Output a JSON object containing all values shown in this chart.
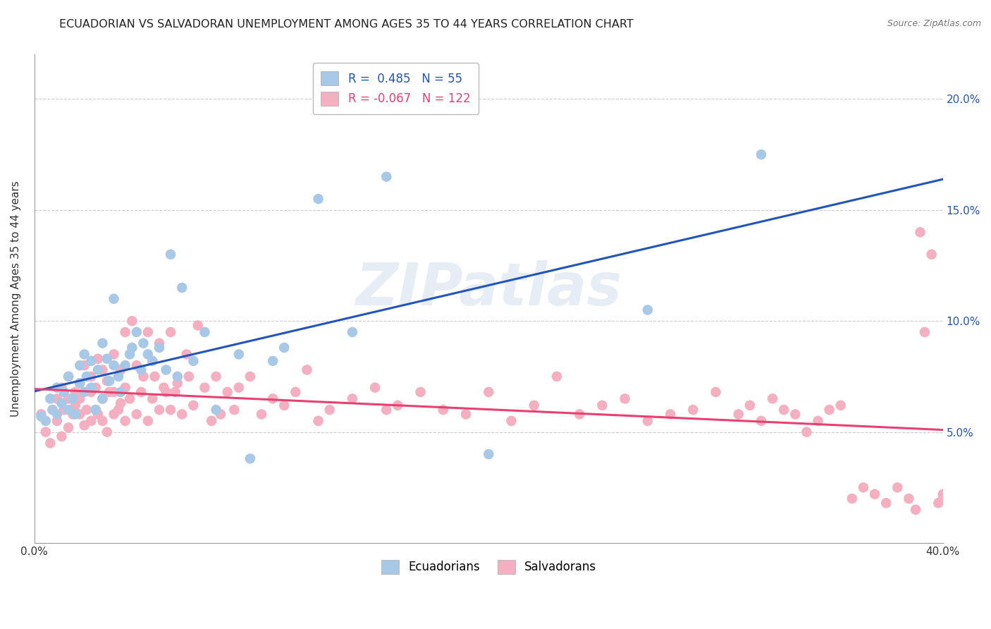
{
  "title": "ECUADORIAN VS SALVADORAN UNEMPLOYMENT AMONG AGES 35 TO 44 YEARS CORRELATION CHART",
  "source": "Source: ZipAtlas.com",
  "ylabel": "Unemployment Among Ages 35 to 44 years",
  "xlim": [
    0.0,
    0.4
  ],
  "ylim": [
    0.0,
    0.22
  ],
  "xticks": [
    0.0,
    0.1,
    0.2,
    0.3,
    0.4
  ],
  "xticklabels": [
    "0.0%",
    "",
    "",
    "",
    "40.0%"
  ],
  "yticks_right": [
    0.05,
    0.1,
    0.15,
    0.2
  ],
  "yticklabels_right": [
    "5.0%",
    "10.0%",
    "15.0%",
    "20.0%"
  ],
  "grid_color": "#cccccc",
  "background_color": "#ffffff",
  "ecuadorian_color": "#a8c8e8",
  "salvadoran_color": "#f4afc0",
  "ecuadorian_line_color": "#2255bb",
  "salvadoran_line_color": "#e84070",
  "R_ecu": 0.485,
  "N_ecu": 55,
  "R_sal": -0.067,
  "N_sal": 122,
  "watermark": "ZIPatlas",
  "legend_labels": [
    "Ecuadorians",
    "Salvadorans"
  ],
  "ecuadorian_points_x": [
    0.003,
    0.005,
    0.007,
    0.008,
    0.01,
    0.01,
    0.012,
    0.013,
    0.015,
    0.015,
    0.017,
    0.018,
    0.02,
    0.02,
    0.022,
    0.022,
    0.023,
    0.025,
    0.025,
    0.027,
    0.028,
    0.03,
    0.03,
    0.032,
    0.033,
    0.035,
    0.035,
    0.037,
    0.038,
    0.04,
    0.042,
    0.043,
    0.045,
    0.047,
    0.048,
    0.05,
    0.052,
    0.055,
    0.058,
    0.06,
    0.063,
    0.065,
    0.07,
    0.075,
    0.08,
    0.09,
    0.095,
    0.105,
    0.11,
    0.125,
    0.14,
    0.155,
    0.2,
    0.27,
    0.32
  ],
  "ecuadorian_points_y": [
    0.057,
    0.055,
    0.065,
    0.06,
    0.058,
    0.07,
    0.063,
    0.068,
    0.06,
    0.075,
    0.065,
    0.058,
    0.072,
    0.08,
    0.068,
    0.085,
    0.075,
    0.07,
    0.082,
    0.06,
    0.078,
    0.065,
    0.09,
    0.083,
    0.073,
    0.08,
    0.11,
    0.075,
    0.068,
    0.08,
    0.085,
    0.088,
    0.095,
    0.078,
    0.09,
    0.085,
    0.082,
    0.088,
    0.078,
    0.13,
    0.075,
    0.115,
    0.082,
    0.095,
    0.06,
    0.085,
    0.038,
    0.082,
    0.088,
    0.155,
    0.095,
    0.165,
    0.04,
    0.105,
    0.175
  ],
  "salvadoran_points_x": [
    0.003,
    0.005,
    0.007,
    0.008,
    0.01,
    0.01,
    0.012,
    0.012,
    0.013,
    0.015,
    0.015,
    0.015,
    0.017,
    0.018,
    0.018,
    0.02,
    0.02,
    0.02,
    0.022,
    0.022,
    0.023,
    0.025,
    0.025,
    0.025,
    0.027,
    0.027,
    0.028,
    0.028,
    0.03,
    0.03,
    0.03,
    0.032,
    0.032,
    0.033,
    0.035,
    0.035,
    0.035,
    0.037,
    0.038,
    0.038,
    0.04,
    0.04,
    0.04,
    0.042,
    0.043,
    0.045,
    0.045,
    0.047,
    0.048,
    0.05,
    0.05,
    0.052,
    0.053,
    0.055,
    0.055,
    0.057,
    0.058,
    0.06,
    0.06,
    0.062,
    0.063,
    0.065,
    0.067,
    0.068,
    0.07,
    0.072,
    0.075,
    0.078,
    0.08,
    0.082,
    0.085,
    0.088,
    0.09,
    0.095,
    0.1,
    0.105,
    0.11,
    0.115,
    0.12,
    0.125,
    0.13,
    0.14,
    0.15,
    0.155,
    0.16,
    0.17,
    0.18,
    0.19,
    0.2,
    0.21,
    0.22,
    0.23,
    0.24,
    0.25,
    0.26,
    0.27,
    0.28,
    0.29,
    0.3,
    0.31,
    0.315,
    0.32,
    0.325,
    0.33,
    0.335,
    0.34,
    0.345,
    0.35,
    0.355,
    0.36,
    0.365,
    0.37,
    0.375,
    0.38,
    0.385,
    0.388,
    0.39,
    0.392,
    0.395,
    0.398,
    0.4,
    0.4
  ],
  "salvadoran_points_y": [
    0.058,
    0.05,
    0.045,
    0.06,
    0.055,
    0.065,
    0.048,
    0.07,
    0.06,
    0.052,
    0.065,
    0.075,
    0.058,
    0.062,
    0.068,
    0.058,
    0.065,
    0.072,
    0.053,
    0.08,
    0.06,
    0.055,
    0.068,
    0.075,
    0.06,
    0.07,
    0.058,
    0.083,
    0.055,
    0.065,
    0.078,
    0.05,
    0.073,
    0.068,
    0.058,
    0.068,
    0.085,
    0.06,
    0.063,
    0.078,
    0.055,
    0.07,
    0.095,
    0.065,
    0.1,
    0.058,
    0.08,
    0.068,
    0.075,
    0.055,
    0.095,
    0.065,
    0.075,
    0.06,
    0.09,
    0.07,
    0.068,
    0.095,
    0.06,
    0.068,
    0.072,
    0.058,
    0.085,
    0.075,
    0.062,
    0.098,
    0.07,
    0.055,
    0.075,
    0.058,
    0.068,
    0.06,
    0.07,
    0.075,
    0.058,
    0.065,
    0.062,
    0.068,
    0.078,
    0.055,
    0.06,
    0.065,
    0.07,
    0.06,
    0.062,
    0.068,
    0.06,
    0.058,
    0.068,
    0.055,
    0.062,
    0.075,
    0.058,
    0.062,
    0.065,
    0.055,
    0.058,
    0.06,
    0.068,
    0.058,
    0.062,
    0.055,
    0.065,
    0.06,
    0.058,
    0.05,
    0.055,
    0.06,
    0.062,
    0.02,
    0.025,
    0.022,
    0.018,
    0.025,
    0.02,
    0.015,
    0.14,
    0.095,
    0.13,
    0.018,
    0.022,
    0.02
  ]
}
